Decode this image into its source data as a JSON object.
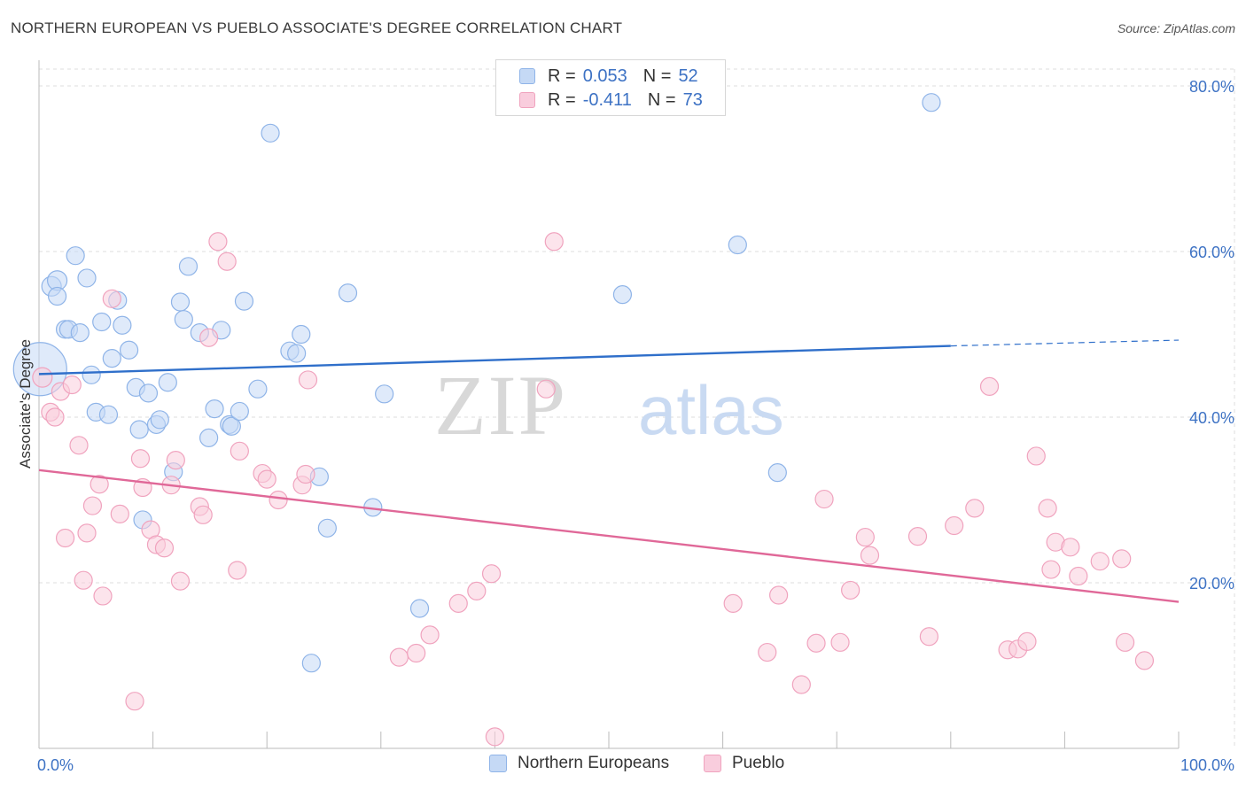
{
  "header": {
    "title": "NORTHERN EUROPEAN VS PUEBLO ASSOCIATE'S DEGREE CORRELATION CHART",
    "source": "Source: ZipAtlas.com"
  },
  "watermark": {
    "part1": "ZIP",
    "part2": "atlas"
  },
  "stats_legend": {
    "r_label": "R =",
    "n_label": "N =",
    "rows": [
      {
        "r": "0.053",
        "n": "52"
      },
      {
        "r": "-0.411",
        "n": "73"
      }
    ]
  },
  "chart_data": {
    "type": "scatter",
    "title": "NORTHERN EUROPEAN VS PUEBLO ASSOCIATE'S DEGREE CORRELATION CHART",
    "ylabel": "Associate's Degree",
    "xlim": [
      0,
      100
    ],
    "ylim": [
      0,
      82
    ],
    "x_ticks": [
      "0.0%",
      "100.0%"
    ],
    "y_ticks": [
      {
        "value": 20,
        "label": "20.0%"
      },
      {
        "value": 40,
        "label": "40.0%"
      },
      {
        "value": 60,
        "label": "60.0%"
      },
      {
        "value": 80,
        "label": "80.0%"
      }
    ],
    "grid": true,
    "legend_position": "bottom-center",
    "series": [
      {
        "name": "Northern Europeans",
        "color": "#8fb4e8",
        "fill": "#c5d9f5",
        "line_color": "#2f6fca",
        "trend": {
          "x0": 0,
          "y0": 45.2,
          "x1": 80,
          "y1": 48.6,
          "dash_to_x": 100,
          "dash_to_y": 49.3
        },
        "points": [
          [
            0.1,
            45.8,
            30
          ],
          [
            1.1,
            55.8,
            11
          ],
          [
            1.6,
            56.5,
            11
          ],
          [
            1.6,
            54.6,
            10
          ],
          [
            3.2,
            59.5,
            10
          ],
          [
            2.3,
            50.6,
            10
          ],
          [
            2.6,
            50.6,
            10
          ],
          [
            3.6,
            50.2,
            10
          ],
          [
            4.2,
            56.8,
            10
          ],
          [
            4.6,
            45.1,
            10
          ],
          [
            5.0,
            40.6,
            10
          ],
          [
            5.5,
            51.5,
            10
          ],
          [
            6.1,
            40.3,
            10
          ],
          [
            6.4,
            47.1,
            10
          ],
          [
            6.9,
            54.1,
            10
          ],
          [
            7.3,
            51.1,
            10
          ],
          [
            7.9,
            48.1,
            10
          ],
          [
            8.5,
            43.6,
            10
          ],
          [
            8.8,
            38.5,
            10
          ],
          [
            9.1,
            27.6,
            10
          ],
          [
            9.6,
            42.9,
            10
          ],
          [
            10.3,
            39.1,
            10
          ],
          [
            10.6,
            39.7,
            10
          ],
          [
            11.3,
            44.2,
            10
          ],
          [
            11.8,
            33.4,
            10
          ],
          [
            12.4,
            53.9,
            10
          ],
          [
            12.7,
            51.8,
            10
          ],
          [
            13.1,
            58.2,
            10
          ],
          [
            14.1,
            50.2,
            10
          ],
          [
            14.9,
            37.5,
            10
          ],
          [
            15.4,
            41.0,
            10
          ],
          [
            16.0,
            50.5,
            10
          ],
          [
            16.7,
            39.1,
            10
          ],
          [
            16.9,
            38.9,
            10
          ],
          [
            17.6,
            40.7,
            10
          ],
          [
            18.0,
            54.0,
            10
          ],
          [
            19.2,
            43.4,
            10
          ],
          [
            20.3,
            74.3,
            10
          ],
          [
            22.0,
            48.0,
            10
          ],
          [
            22.6,
            47.7,
            10
          ],
          [
            23.0,
            50.0,
            10
          ],
          [
            23.9,
            10.3,
            10
          ],
          [
            24.6,
            32.8,
            10
          ],
          [
            25.3,
            26.6,
            10
          ],
          [
            27.1,
            55.0,
            10
          ],
          [
            29.3,
            29.1,
            10
          ],
          [
            30.3,
            42.8,
            10
          ],
          [
            33.4,
            16.9,
            10
          ],
          [
            51.2,
            54.8,
            10
          ],
          [
            61.3,
            60.8,
            10
          ],
          [
            64.8,
            33.3,
            10
          ],
          [
            78.3,
            78.0,
            10
          ]
        ]
      },
      {
        "name": "Pueblo",
        "color": "#f0a3be",
        "fill": "#f9cddd",
        "line_color": "#e06898",
        "trend": {
          "x0": 0,
          "y0": 33.6,
          "x1": 100,
          "y1": 17.7
        },
        "points": [
          [
            0.3,
            44.8,
            11
          ],
          [
            1.0,
            40.6,
            10
          ],
          [
            1.4,
            40.0,
            10
          ],
          [
            1.9,
            43.1,
            10
          ],
          [
            2.3,
            25.4,
            10
          ],
          [
            2.9,
            43.9,
            10
          ],
          [
            3.5,
            36.6,
            10
          ],
          [
            3.9,
            20.3,
            10
          ],
          [
            4.2,
            26.0,
            10
          ],
          [
            4.7,
            29.3,
            10
          ],
          [
            5.3,
            31.9,
            10
          ],
          [
            5.6,
            18.4,
            10
          ],
          [
            6.4,
            54.3,
            10
          ],
          [
            7.1,
            28.3,
            10
          ],
          [
            8.4,
            5.7,
            10
          ],
          [
            8.9,
            35.0,
            10
          ],
          [
            9.1,
            31.5,
            10
          ],
          [
            9.8,
            26.4,
            10
          ],
          [
            10.3,
            24.6,
            10
          ],
          [
            11.0,
            24.2,
            10
          ],
          [
            11.6,
            31.8,
            10
          ],
          [
            12.0,
            34.8,
            10
          ],
          [
            12.4,
            20.2,
            10
          ],
          [
            14.1,
            29.2,
            10
          ],
          [
            14.4,
            28.2,
            10
          ],
          [
            14.9,
            49.6,
            10
          ],
          [
            15.7,
            61.2,
            10
          ],
          [
            16.5,
            58.8,
            10
          ],
          [
            17.4,
            21.5,
            10
          ],
          [
            17.6,
            35.9,
            10
          ],
          [
            19.6,
            33.2,
            10
          ],
          [
            20.0,
            32.5,
            10
          ],
          [
            21.0,
            30.0,
            10
          ],
          [
            23.1,
            31.8,
            10
          ],
          [
            23.6,
            44.5,
            10
          ],
          [
            23.4,
            33.1,
            10
          ],
          [
            31.6,
            11.0,
            10
          ],
          [
            33.1,
            11.5,
            10
          ],
          [
            34.3,
            13.7,
            10
          ],
          [
            36.8,
            17.5,
            10
          ],
          [
            38.4,
            19.0,
            10
          ],
          [
            39.7,
            21.1,
            10
          ],
          [
            40.0,
            1.4,
            10
          ],
          [
            44.5,
            43.4,
            10
          ],
          [
            45.2,
            61.2,
            10
          ],
          [
            60.9,
            17.5,
            10
          ],
          [
            63.9,
            11.6,
            10
          ],
          [
            64.9,
            18.5,
            10
          ],
          [
            66.9,
            7.7,
            10
          ],
          [
            68.2,
            12.7,
            10
          ],
          [
            68.9,
            30.1,
            10
          ],
          [
            70.3,
            12.8,
            10
          ],
          [
            71.2,
            19.1,
            10
          ],
          [
            72.5,
            25.5,
            10
          ],
          [
            72.9,
            23.3,
            10
          ],
          [
            77.1,
            25.6,
            10
          ],
          [
            78.1,
            13.5,
            10
          ],
          [
            80.3,
            26.9,
            10
          ],
          [
            82.1,
            29.0,
            10
          ],
          [
            83.4,
            43.7,
            10
          ],
          [
            85.0,
            11.9,
            10
          ],
          [
            85.9,
            12.0,
            10
          ],
          [
            86.7,
            12.9,
            10
          ],
          [
            87.5,
            35.3,
            10
          ],
          [
            88.5,
            29.0,
            10
          ],
          [
            88.8,
            21.6,
            10
          ],
          [
            89.2,
            24.9,
            10
          ],
          [
            90.5,
            24.3,
            10
          ],
          [
            91.2,
            20.8,
            10
          ],
          [
            93.1,
            22.6,
            10
          ],
          [
            95.0,
            22.9,
            10
          ],
          [
            95.3,
            12.8,
            10
          ],
          [
            97.0,
            10.6,
            10
          ]
        ]
      }
    ]
  }
}
